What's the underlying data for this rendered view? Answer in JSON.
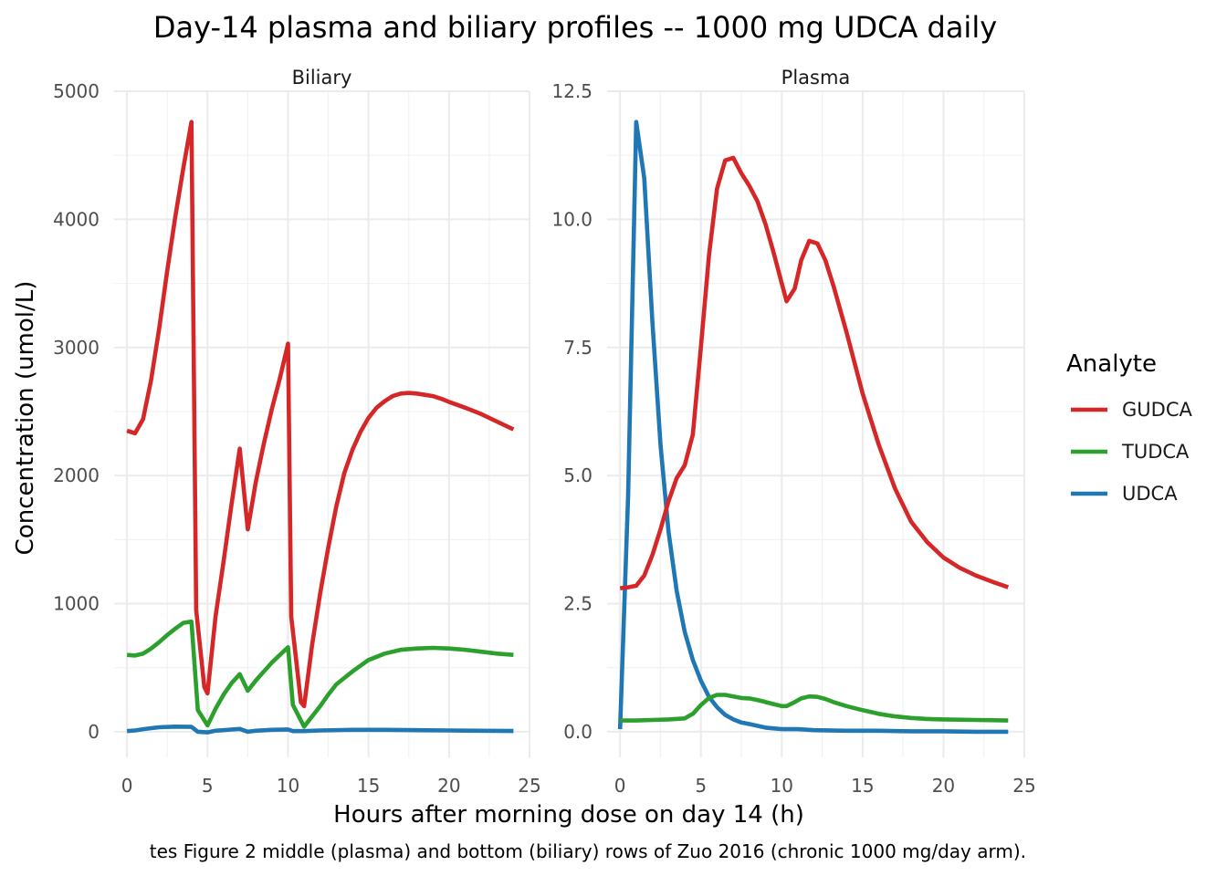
{
  "chart_data": {
    "type": "line",
    "title": "Day-14 plasma and biliary profiles -- 1000 mg UDCA daily",
    "xlabel": "Hours after morning dose on day 14 (h)",
    "ylabel": "Concentration (umol/L)",
    "caption": "tes Figure 2 middle (plasma) and bottom (biliary) rows of Zuo 2016 (chronic 1000 mg/day arm).",
    "legend": {
      "title": "Analyte",
      "position": "right",
      "entries": [
        {
          "name": "GUDCA",
          "color": "#d62728"
        },
        {
          "name": "TUDCA",
          "color": "#2ca02c"
        },
        {
          "name": "UDCA",
          "color": "#1f77b4"
        }
      ]
    },
    "grid": true,
    "xlim": [
      -0.8,
      25
    ],
    "x_ticks": [
      0,
      5,
      10,
      15,
      20,
      25
    ],
    "panels": [
      {
        "name": "Biliary",
        "ylim": [
          -200,
          5000
        ],
        "y_ticks": [
          0,
          1000,
          2000,
          3000,
          4000,
          5000
        ],
        "y_tick_labels": [
          "0",
          "1000",
          "2000",
          "3000",
          "4000",
          "5000"
        ],
        "series": [
          {
            "name": "GUDCA",
            "color": "#d62728",
            "x": [
              0,
              0.5,
              1,
              1.5,
              2,
              2.5,
              3,
              3.5,
              4,
              4.3,
              4.8,
              5,
              5.5,
              6,
              6.5,
              7,
              7.5,
              8,
              8.5,
              9,
              9.5,
              10,
              10.2,
              10.8,
              11,
              11.5,
              12,
              12.5,
              13,
              13.5,
              14,
              14.5,
              15,
              15.5,
              16,
              16.5,
              17,
              17.5,
              18,
              18.5,
              19,
              19.5,
              20,
              21,
              22,
              23,
              24
            ],
            "y": [
              2350,
              2330,
              2440,
              2750,
              3150,
              3600,
              4020,
              4400,
              4760,
              950,
              350,
              300,
              900,
              1330,
              1780,
              2210,
              1580,
              1950,
              2250,
              2520,
              2760,
              3030,
              900,
              230,
              200,
              680,
              1080,
              1440,
              1760,
              2020,
              2200,
              2340,
              2450,
              2530,
              2580,
              2620,
              2640,
              2645,
              2640,
              2630,
              2620,
              2600,
              2575,
              2530,
              2480,
              2420,
              2360
            ]
          },
          {
            "name": "TUDCA",
            "color": "#2ca02c",
            "x": [
              0,
              0.5,
              1,
              1.5,
              2,
              2.5,
              3,
              3.5,
              4,
              4.4,
              5,
              5.5,
              6,
              6.5,
              7,
              7.5,
              8,
              8.5,
              9,
              9.5,
              10,
              10.3,
              11,
              11.5,
              12,
              12.5,
              13,
              14,
              15,
              16,
              17,
              18,
              19,
              20,
              21,
              22,
              23,
              24
            ],
            "y": [
              600,
              595,
              610,
              650,
              700,
              755,
              805,
              850,
              860,
              170,
              50,
              180,
              290,
              380,
              450,
              320,
              400,
              470,
              540,
              600,
              660,
              210,
              40,
              120,
              200,
              290,
              370,
              470,
              560,
              610,
              640,
              650,
              655,
              650,
              640,
              625,
              610,
              600
            ]
          },
          {
            "name": "UDCA",
            "color": "#1f77b4",
            "x": [
              0,
              0.5,
              1,
              1.5,
              2,
              3,
              4,
              4.4,
              5,
              5.5,
              7,
              7.5,
              8,
              9,
              10,
              10.3,
              11,
              12,
              14,
              16,
              18,
              20,
              22,
              24
            ],
            "y": [
              5,
              10,
              20,
              28,
              35,
              40,
              38,
              0,
              -5,
              8,
              22,
              0,
              8,
              15,
              18,
              5,
              5,
              10,
              15,
              15,
              12,
              10,
              8,
              6
            ]
          }
        ]
      },
      {
        "name": "Plasma",
        "ylim": [
          -0.5,
          12.5
        ],
        "y_ticks": [
          0,
          2.5,
          5,
          7.5,
          10,
          12.5
        ],
        "y_tick_labels": [
          "0.0",
          "2.5",
          "5.0",
          "7.5",
          "10.0",
          "12.5"
        ],
        "series": [
          {
            "name": "GUDCA",
            "color": "#d62728",
            "x": [
              0,
              0.5,
              1,
              1.5,
              2,
              2.5,
              3,
              3.5,
              4,
              4.5,
              5,
              5.5,
              6,
              6.5,
              7,
              7.5,
              8,
              8.5,
              9,
              9.5,
              10,
              10.3,
              10.8,
              11.2,
              11.7,
              12.2,
              12.7,
              13.2,
              14,
              15,
              16,
              17,
              18,
              19,
              20,
              21,
              22,
              23,
              24
            ],
            "y": [
              2.8,
              2.82,
              2.85,
              3.05,
              3.45,
              3.95,
              4.5,
              4.95,
              5.2,
              5.8,
              7.5,
              9.3,
              10.6,
              11.15,
              11.2,
              10.9,
              10.65,
              10.35,
              9.9,
              9.35,
              8.75,
              8.4,
              8.65,
              9.2,
              9.58,
              9.53,
              9.2,
              8.7,
              7.8,
              6.6,
              5.6,
              4.75,
              4.1,
              3.7,
              3.4,
              3.2,
              3.05,
              2.93,
              2.82
            ]
          },
          {
            "name": "TUDCA",
            "color": "#2ca02c",
            "x": [
              0,
              1,
              2,
              3,
              4,
              4.5,
              5,
              5.5,
              6,
              6.5,
              7,
              7.5,
              8,
              8.5,
              9,
              9.5,
              10,
              10.3,
              10.8,
              11.2,
              11.7,
              12.2,
              12.7,
              13.2,
              14,
              15,
              16,
              17,
              18,
              19,
              20,
              22,
              24
            ],
            "y": [
              0.22,
              0.22,
              0.23,
              0.24,
              0.26,
              0.35,
              0.52,
              0.66,
              0.72,
              0.72,
              0.69,
              0.66,
              0.65,
              0.62,
              0.58,
              0.54,
              0.5,
              0.5,
              0.58,
              0.65,
              0.69,
              0.68,
              0.64,
              0.58,
              0.5,
              0.42,
              0.35,
              0.3,
              0.27,
              0.25,
              0.24,
              0.23,
              0.22
            ]
          },
          {
            "name": "UDCA",
            "color": "#1f77b4",
            "x": [
              0,
              0.5,
              1,
              1.5,
              2,
              2.5,
              3,
              3.5,
              4,
              4.5,
              5,
              5.5,
              6,
              6.5,
              7,
              7.5,
              8,
              9,
              10,
              11,
              12,
              14,
              16,
              18,
              20,
              22,
              24
            ],
            "y": [
              0.05,
              4.6,
              11.9,
              10.8,
              8.0,
              5.6,
              3.9,
              2.75,
              1.95,
              1.4,
              1.0,
              0.68,
              0.48,
              0.33,
              0.24,
              0.18,
              0.15,
              0.08,
              0.05,
              0.05,
              0.03,
              0.02,
              0.02,
              0.01,
              0.01,
              0.0,
              0.0
            ]
          }
        ]
      }
    ]
  }
}
